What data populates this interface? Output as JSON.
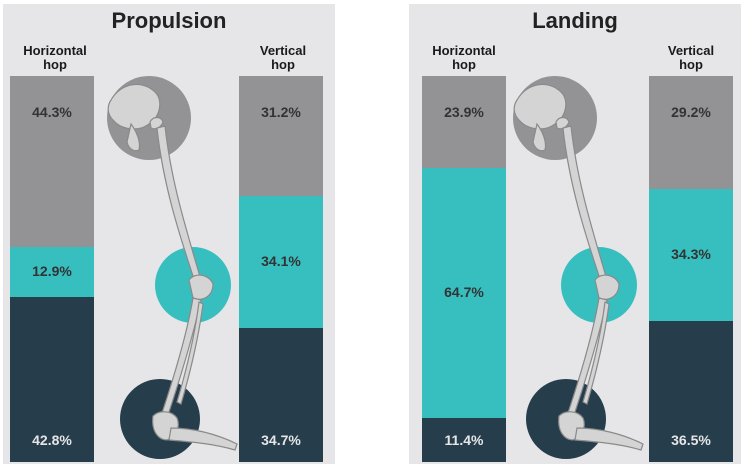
{
  "colors": {
    "hip": "#939395",
    "knee": "#37bfc0",
    "ankle": "#263d4b",
    "panel_bg": "#e6e6e8",
    "bone": "#d4d4d4",
    "dark_label": "#333333",
    "light_label": "#e6e6e6"
  },
  "chart_data": [
    {
      "type": "bar",
      "title": "Propulsion",
      "stacking": "stacked-100",
      "categories": [
        "Horizontal\nhop",
        "Vertical\nhop"
      ],
      "series": [
        {
          "joint_icon": "hip-circle-icon",
          "values": [
            44.3,
            31.2
          ],
          "labels": [
            "44.3%",
            "31.2%"
          ]
        },
        {
          "joint_icon": "knee-circle-icon",
          "values": [
            12.9,
            34.1
          ],
          "labels": [
            "12.9%",
            "34.1%"
          ]
        },
        {
          "joint_icon": "ankle-circle-icon",
          "values": [
            42.8,
            34.7
          ],
          "labels": [
            "42.8%",
            "34.7%"
          ]
        }
      ]
    },
    {
      "type": "bar",
      "title": "Landing",
      "stacking": "stacked-100",
      "categories": [
        "Horizontal\nhop",
        "Vertical\nhop"
      ],
      "series": [
        {
          "joint_icon": "hip-circle-icon",
          "values": [
            23.9,
            29.2
          ],
          "labels": [
            "23.9%",
            "29.2%"
          ]
        },
        {
          "joint_icon": "knee-circle-icon",
          "values": [
            64.7,
            34.3
          ],
          "labels": [
            "64.7%",
            "34.3%"
          ]
        },
        {
          "joint_icon": "ankle-circle-icon",
          "values": [
            11.4,
            36.5
          ],
          "labels": [
            "11.4%",
            "36.5%"
          ]
        }
      ]
    }
  ]
}
